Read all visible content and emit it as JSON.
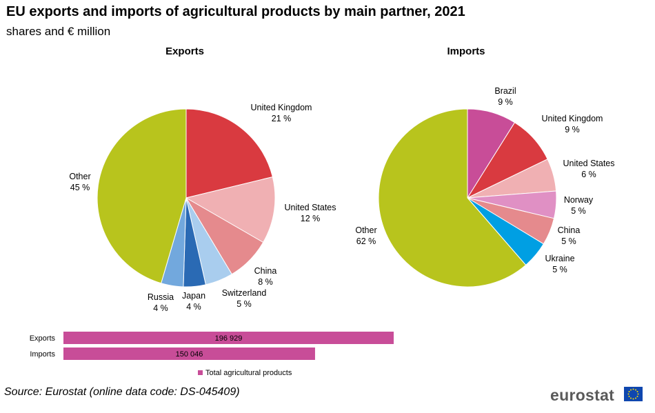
{
  "title": "EU exports and imports of agricultural products by main partner, 2021",
  "subtitle": "shares and € million",
  "source": "Source: Eurostat (online data code: DS-045409)",
  "logo_text": "eurostat",
  "chart_data": [
    {
      "type": "pie",
      "title": "Exports",
      "unit": "%",
      "slices": [
        {
          "label": "United Kingdom",
          "value": 21,
          "value_label": "21 %",
          "color": "#d93a40"
        },
        {
          "label": "United States",
          "value": 12,
          "value_label": "12 %",
          "color": "#f0b0b3"
        },
        {
          "label": "China",
          "value": 8,
          "value_label": "8 %",
          "color": "#e58a8d"
        },
        {
          "label": "Switzerland",
          "value": 5,
          "value_label": "5 %",
          "color": "#a9cdee"
        },
        {
          "label": "Japan",
          "value": 4,
          "value_label": "4 %",
          "color": "#2a6ab4"
        },
        {
          "label": "Russia",
          "value": 4,
          "value_label": "4 %",
          "color": "#72a8dd"
        },
        {
          "label": "Other",
          "value": 45,
          "value_label": "45 %",
          "color": "#b8c41d"
        }
      ]
    },
    {
      "type": "pie",
      "title": "Imports",
      "unit": "%",
      "slices": [
        {
          "label": "Brazil",
          "value": 9,
          "value_label": "9 %",
          "color": "#c84d98"
        },
        {
          "label": "United Kingdom",
          "value": 9,
          "value_label": "9 %",
          "color": "#d93a40"
        },
        {
          "label": "United States",
          "value": 6,
          "value_label": "6 %",
          "color": "#f0b0b3"
        },
        {
          "label": "Norway",
          "value": 5,
          "value_label": "5 %",
          "color": "#e090c4"
        },
        {
          "label": "China",
          "value": 5,
          "value_label": "5 %",
          "color": "#e58a8d"
        },
        {
          "label": "Ukraine",
          "value": 5,
          "value_label": "5 %",
          "color": "#009fe3"
        },
        {
          "label": "Other",
          "value": 62,
          "value_label": "62 %",
          "color": "#b8c41d"
        }
      ]
    },
    {
      "type": "bar",
      "orientation": "horizontal",
      "unit": "€ million",
      "categories": [
        "Exports",
        "Imports"
      ],
      "series": [
        {
          "name": "Total agricultural products",
          "values": [
            196929,
            150046
          ],
          "value_labels": [
            "196 929",
            "150 046"
          ],
          "color": "#c84d98"
        }
      ],
      "legend": "bottom"
    }
  ]
}
